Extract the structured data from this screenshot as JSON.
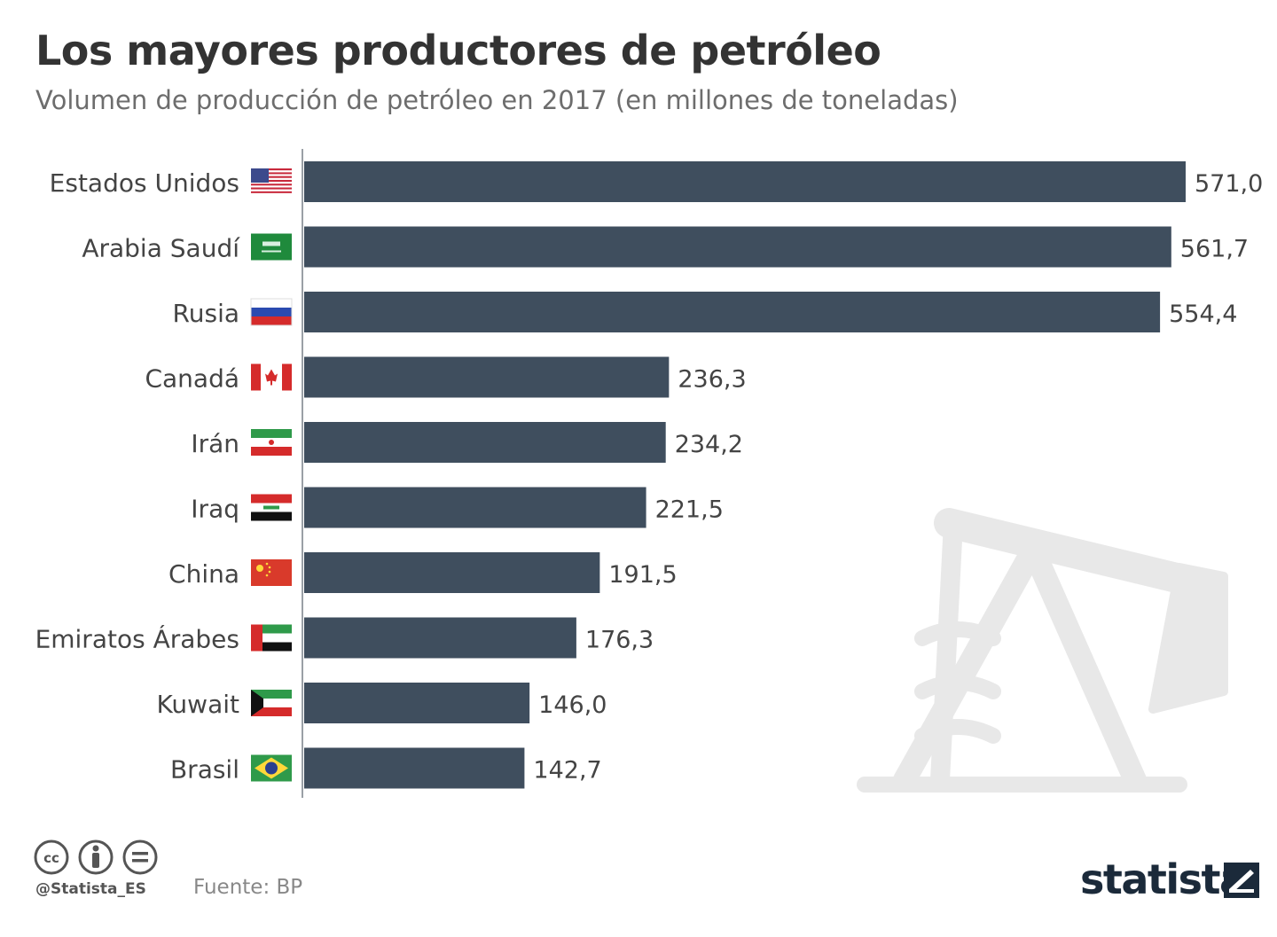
{
  "header": {
    "title": "Los mayores productores de petróleo",
    "subtitle": "Volumen de producción de petróleo en 2017 (en millones de toneladas)"
  },
  "footer": {
    "handle": "@Statista_ES",
    "source": "Fuente: BP",
    "brand": "statista",
    "license_icons": [
      "cc-icon",
      "by-icon",
      "nd-icon"
    ]
  },
  "colors": {
    "bar": "#3f4e5e",
    "axis": "#9aa0a6",
    "label": "#444444",
    "watermark": "#e6e6e6"
  },
  "chart_data": {
    "type": "bar",
    "orientation": "horizontal",
    "categories": [
      "Estados Unidos",
      "Arabia Saudí",
      "Rusia",
      "Canadá",
      "Irán",
      "Iraq",
      "China",
      "Emiratos Árabes",
      "Kuwait",
      "Brasil"
    ],
    "values": [
      571.0,
      561.7,
      554.4,
      236.3,
      234.2,
      221.5,
      191.5,
      176.3,
      146.0,
      142.7
    ],
    "value_labels": [
      "571,0",
      "561,7",
      "554,4",
      "236,3",
      "234,2",
      "221,5",
      "191,5",
      "176,3",
      "146,0",
      "142,7"
    ],
    "flags": [
      "us-flag-icon",
      "sa-flag-icon",
      "ru-flag-icon",
      "ca-flag-icon",
      "ir-flag-icon",
      "iq-flag-icon",
      "cn-flag-icon",
      "ae-flag-icon",
      "kw-flag-icon",
      "br-flag-icon"
    ],
    "xlim": [
      0,
      571.0
    ],
    "grid": false,
    "legend": "none"
  }
}
